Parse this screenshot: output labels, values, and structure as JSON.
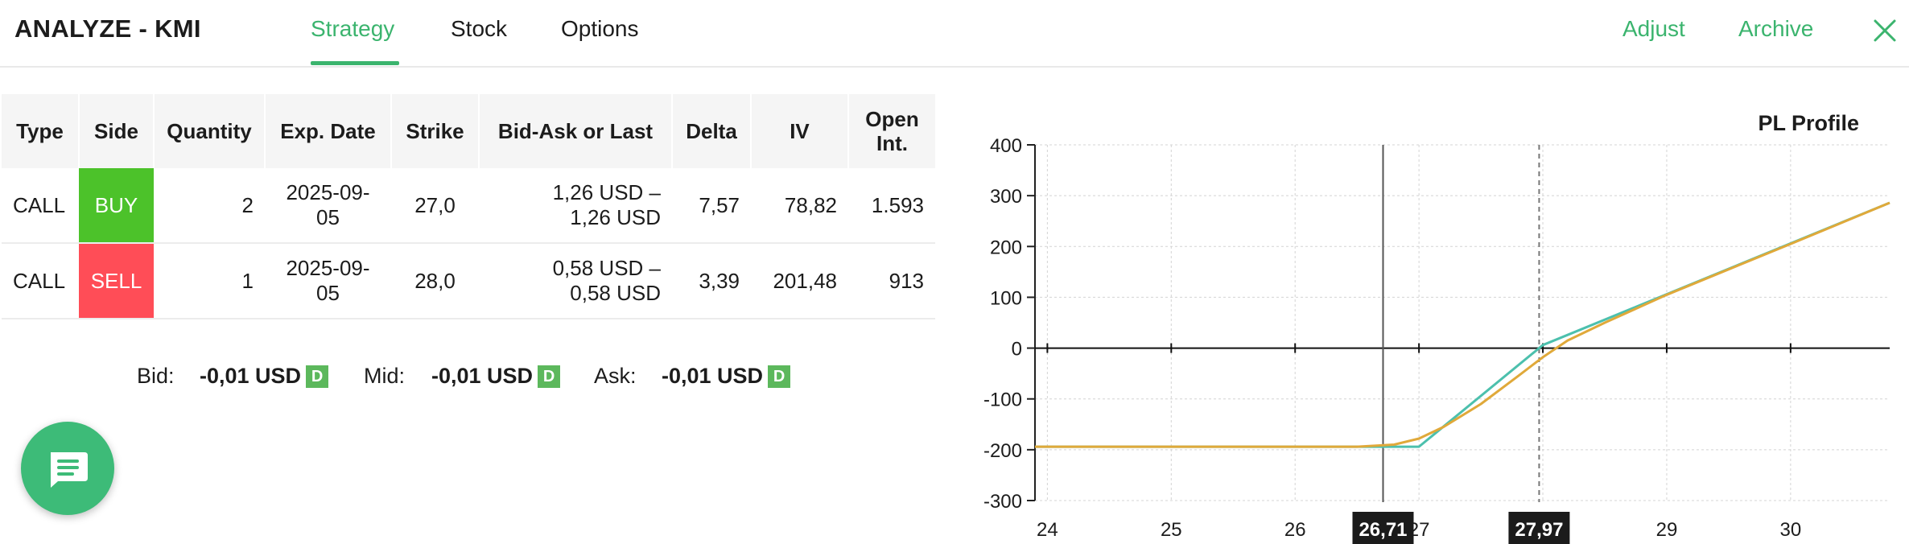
{
  "header": {
    "title": "ANALYZE - KMI",
    "tabs": [
      {
        "label": "Strategy",
        "active": true
      },
      {
        "label": "Stock",
        "active": false
      },
      {
        "label": "Options",
        "active": false
      }
    ],
    "adjust_label": "Adjust",
    "archive_label": "Archive",
    "close_icon": "close-icon"
  },
  "table": {
    "headers": {
      "type": "Type",
      "side": "Side",
      "quantity": "Quantity",
      "exp_date": "Exp. Date",
      "strike": "Strike",
      "bid_ask": "Bid-Ask or Last",
      "delta": "Delta",
      "iv": "IV",
      "open_int_1": "Open",
      "open_int_2": "Int."
    },
    "rows": [
      {
        "type": "CALL",
        "side": "BUY",
        "quantity": "2",
        "exp_1": "2025-09-",
        "exp_2": "05",
        "strike": "27,0",
        "bid_ask_1": "1,26 USD –",
        "bid_ask_2": "1,26 USD",
        "delta": "7,57",
        "iv": "78,82",
        "open_int": "1.593"
      },
      {
        "type": "CALL",
        "side": "SELL",
        "quantity": "1",
        "exp_1": "2025-09-",
        "exp_2": "05",
        "strike": "28,0",
        "bid_ask_1": "0,58 USD –",
        "bid_ask_2": "0,58 USD",
        "delta": "3,39",
        "iv": "201,48",
        "open_int": "913"
      }
    ]
  },
  "summary": {
    "bid_label": "Bid:",
    "bid_value": "-0,01 USD",
    "mid_label": "Mid:",
    "mid_value": "-0,01 USD",
    "ask_label": "Ask:",
    "ask_value": "-0,01 USD",
    "badge": "D"
  },
  "colors": {
    "accent": "#3bb46e",
    "buy": "#4cc22a",
    "sell": "#ff4d57",
    "line_now": "#e0a93a",
    "line_expiry": "#4cc0ad"
  },
  "chat_icon": "chat-icon",
  "chart_data": {
    "type": "line",
    "title": "PL Profile",
    "xlabel": "",
    "ylabel": "",
    "xlim": [
      23.9,
      30.8
    ],
    "ylim": [
      -300,
      400
    ],
    "x_ticks": [
      24,
      25,
      26,
      27,
      28,
      29,
      30
    ],
    "y_ticks": [
      400,
      300,
      200,
      100,
      0,
      -100,
      -200,
      -300
    ],
    "grid": true,
    "markers": [
      {
        "x": 26.71,
        "label": "26,71",
        "style": "solid"
      },
      {
        "x": 27.97,
        "label": "27,97",
        "style": "dashed"
      }
    ],
    "series": [
      {
        "x": [
          23.9,
          26.7,
          27.0,
          28.0,
          30.8
        ],
        "y": [
          -194,
          -194,
          -194,
          6,
          286
        ]
      },
      {
        "x": [
          23.9,
          26.5,
          26.8,
          27.0,
          27.2,
          27.5,
          27.8,
          28.0,
          28.2,
          28.5,
          29.0,
          30.0,
          30.8
        ],
        "y": [
          -194,
          -194,
          -190,
          -178,
          -155,
          -110,
          -55,
          -18,
          15,
          50,
          105,
          205,
          286
        ]
      }
    ]
  }
}
